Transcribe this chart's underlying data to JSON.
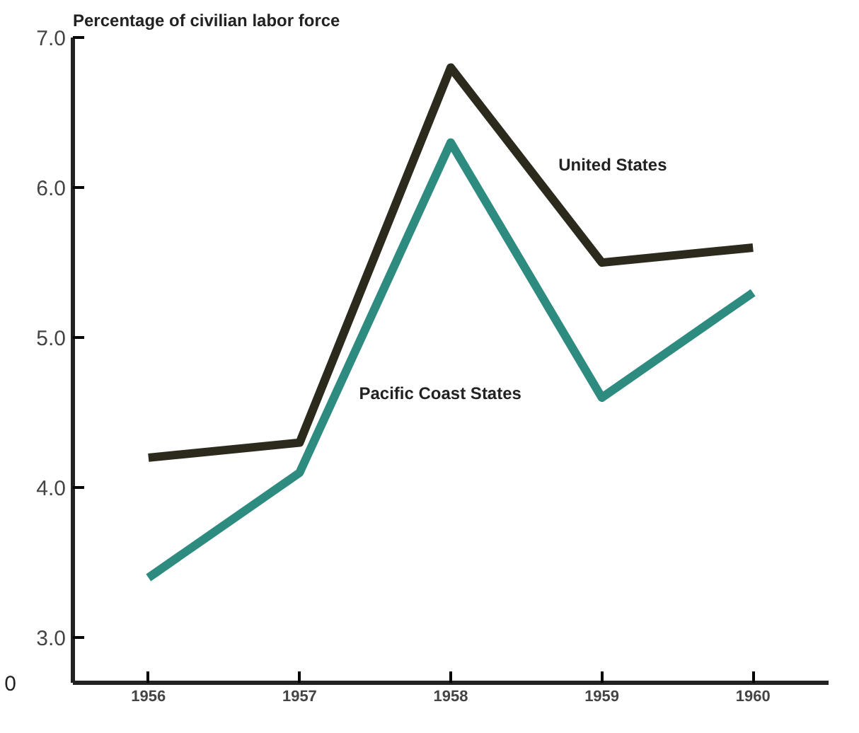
{
  "chart_data": {
    "type": "line",
    "ylabel": "Percentage of civilian labor force",
    "x": [
      1956,
      1957,
      1958,
      1959,
      1960
    ],
    "series": [
      {
        "name": "United States",
        "color": "#2b2a1c",
        "values": [
          4.2,
          4.3,
          6.8,
          5.5,
          5.6
        ]
      },
      {
        "name": "Pacific Coast States",
        "color": "#2e8b80",
        "values": [
          3.4,
          4.1,
          6.3,
          4.6,
          5.3
        ]
      }
    ],
    "xlim": [
      1955.5,
      1960.5
    ],
    "xticks": [
      {
        "value": 1956,
        "label": "1956"
      },
      {
        "value": 1957,
        "label": "1957"
      },
      {
        "value": 1958,
        "label": "1958"
      },
      {
        "value": 1959,
        "label": "1959"
      },
      {
        "value": 1960,
        "label": "1960"
      }
    ],
    "ylim": [
      2.7,
      7.0
    ],
    "yticks": [
      {
        "value": 3,
        "label": "3.0"
      },
      {
        "value": 4,
        "label": "4.0"
      },
      {
        "value": 5,
        "label": "5.0"
      },
      {
        "value": 6,
        "label": "6.0"
      },
      {
        "value": 7,
        "label": "7.0"
      }
    ],
    "annotations": [
      "0"
    ],
    "grid": false,
    "legend": false,
    "line_style": "solid",
    "marker": "none"
  }
}
